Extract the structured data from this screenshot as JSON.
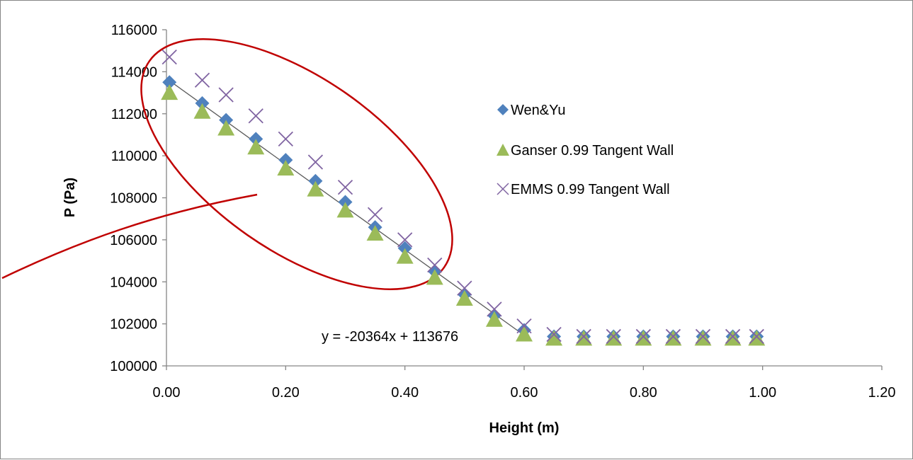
{
  "chart_data": {
    "type": "scatter",
    "title": "",
    "xlabel": "Height (m)",
    "ylabel": "P (Pa)",
    "xlim": [
      0,
      1.2
    ],
    "ylim": [
      100000,
      116000
    ],
    "x_ticks": [
      "0.00",
      "0.20",
      "0.40",
      "0.60",
      "0.80",
      "1.00",
      "1.20"
    ],
    "x_tick_values": [
      0,
      0.2,
      0.4,
      0.6,
      0.8,
      1.0,
      1.2
    ],
    "y_ticks": [
      "100000",
      "102000",
      "104000",
      "106000",
      "108000",
      "110000",
      "112000",
      "114000",
      "116000"
    ],
    "y_tick_values": [
      100000,
      102000,
      104000,
      106000,
      108000,
      110000,
      112000,
      114000,
      116000
    ],
    "grid": false,
    "legend_position": "right-upper-middle",
    "series": [
      {
        "name": "Wen&Yu",
        "marker": "diamond",
        "color": "#4F81BD",
        "x": [
          0.005,
          0.06,
          0.1,
          0.15,
          0.2,
          0.25,
          0.3,
          0.35,
          0.4,
          0.45,
          0.5,
          0.55,
          0.6,
          0.65,
          0.7,
          0.75,
          0.8,
          0.85,
          0.9,
          0.95,
          0.99
        ],
        "y": [
          113500,
          112500,
          111700,
          110800,
          109800,
          108800,
          107800,
          106600,
          105600,
          104500,
          103400,
          102400,
          101700,
          101400,
          101400,
          101400,
          101400,
          101400,
          101400,
          101400,
          101400
        ]
      },
      {
        "name": "Ganser 0.99 Tangent Wall",
        "marker": "triangle",
        "color": "#9BBB59",
        "x": [
          0.005,
          0.06,
          0.1,
          0.15,
          0.2,
          0.25,
          0.3,
          0.35,
          0.4,
          0.45,
          0.5,
          0.55,
          0.6,
          0.65,
          0.7,
          0.75,
          0.8,
          0.85,
          0.9,
          0.95,
          0.99
        ],
        "y": [
          113000,
          112100,
          111300,
          110400,
          109400,
          108400,
          107400,
          106300,
          105200,
          104200,
          103200,
          102200,
          101500,
          101300,
          101300,
          101300,
          101300,
          101300,
          101300,
          101300,
          101300
        ]
      },
      {
        "name": "EMMS 0.99 Tangent Wall",
        "marker": "x",
        "color": "#8064A2",
        "x": [
          0.005,
          0.06,
          0.1,
          0.15,
          0.2,
          0.25,
          0.3,
          0.35,
          0.4,
          0.45,
          0.5,
          0.55,
          0.6,
          0.65,
          0.7,
          0.75,
          0.8,
          0.85,
          0.9,
          0.95,
          0.99
        ],
        "y": [
          114700,
          113600,
          112900,
          111900,
          110800,
          109700,
          108500,
          107200,
          106000,
          104800,
          103700,
          102700,
          101900,
          101500,
          101400,
          101400,
          101400,
          101400,
          101400,
          101400,
          101400
        ]
      }
    ],
    "trendline": {
      "slope": -20364,
      "intercept": 113676,
      "x_range": [
        0,
        0.6
      ],
      "color": "#595959",
      "equation_label": "y = -20364x + 113676"
    },
    "annotation": {
      "shape": "ellipse-with-callout",
      "color": "#C00000"
    }
  }
}
